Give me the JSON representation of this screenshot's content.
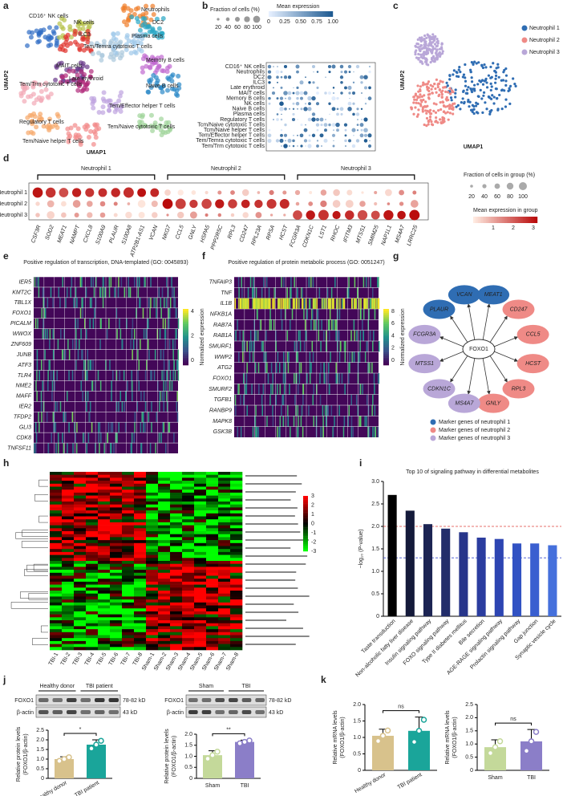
{
  "panel_letters": [
    "a",
    "b",
    "c",
    "d",
    "e",
    "f",
    "g",
    "h",
    "i",
    "j",
    "k"
  ],
  "panels": {
    "a": {
      "x_label": "UMAP1",
      "y_label": "UMAP2",
      "clusters": [
        "CD16⁺ NK cells",
        "NK cells",
        "ILC3",
        "Neutrophils",
        "DC2",
        "Tem/Temra cytotoxic T cells",
        "Plasma cells",
        "MAIT cells",
        "Memory B cells",
        "Late erythroid",
        "Naive B cells",
        "Tem/Trm cytotoxic T cells",
        "Tem/Effector helper T cells",
        "Regulatory T cells",
        "Tem/Naive cytotoxic T cells",
        "Tem/Naive helper T cells"
      ]
    },
    "b": {
      "size_title": "Fraction of cells (%)",
      "size_ticks": [
        20,
        40,
        60,
        80,
        100
      ],
      "color_title": "Mean expression",
      "color_ticks": [
        {
          "value": 0,
          "label": "0"
        },
        {
          "value": 0.25,
          "label": "0.25"
        },
        {
          "value": 0.5,
          "label": "0.50"
        },
        {
          "value": 0.75,
          "label": "0.75"
        },
        {
          "value": 1,
          "label": "1.00"
        }
      ],
      "rows": [
        "CD16⁺ NK cells",
        "Neutrophils",
        "DC2",
        "ILC3",
        "Late erythroid",
        "MAIT cells",
        "Memory B cells",
        "NK cells",
        "Naive B cells",
        "Plasma cells",
        "Regulatory T cells",
        "Tcm/Naive cytotoxic T cells",
        "Tcm/Naive helper T cells",
        "Tem/Effector helper T cells",
        "Tem/Temra cytotoxic T cells",
        "Tem/Trm cytotoxic T cells"
      ]
    },
    "c": {
      "x_label": "UMAP1",
      "y_label": "UMAP2",
      "legend": [
        "Neutrophil 1",
        "Neutrophil 2",
        "Neutrophil 3"
      ],
      "colors": [
        "#2f6db3",
        "#ef8a86",
        "#b9a7d8"
      ]
    },
    "d": {
      "groups": [
        "Neutrophil 1",
        "Neutrophil 2",
        "Neutrophil 3"
      ],
      "group_colors": [
        "#2f6db3",
        "#ef8a86",
        "#b9a7d8"
      ],
      "genes": [
        "CSF3R",
        "SOD2",
        "MEAT1",
        "NAMPT",
        "CXCL8",
        "S100A9",
        "PLAUR",
        "S100A8",
        "ATP2B1-AS1",
        "VCAN",
        "NKG7",
        "CCL5",
        "GNLY",
        "HSPA5",
        "PPP2R5C",
        "RPL3",
        "CD247",
        "RPL23A",
        "RPSA",
        "HCST",
        "FCGR3A",
        "CDKN1C",
        "LST1",
        "RHOC",
        "IFITM3",
        "MTSS1",
        "SMIM25",
        "NAP1L1",
        "MS4A7",
        "LRRC25"
      ],
      "size_title": "Fraction of cells in group (%)",
      "size_ticks": [
        20,
        40,
        60,
        80,
        100
      ],
      "color_title": "Mean expression in group",
      "color_ticks": [
        1,
        2,
        3
      ]
    },
    "e": {
      "title": "Positive regulation of transcription, DNA-templated (GO: 0045893)",
      "genes": [
        "IER5",
        "KMT2C",
        "TBL1X",
        "FOXO1",
        "PICALM",
        "WWOX",
        "ZNF609",
        "JUNB",
        "ATF3",
        "TLR4",
        "NME2",
        "MAFF",
        "IER2",
        "TFDP2",
        "GLI3",
        "CDK8",
        "TNFSF11"
      ],
      "highlight": "FOXO1",
      "colorbar_title": "Normalized expression",
      "colorbar_ticks": [
        0,
        2,
        4
      ]
    },
    "f": {
      "title": "Positive regulation of protein metabolic process (GO: 0051247)",
      "genes": [
        "TNFAIP3",
        "TNF",
        "IL1B",
        "NFKB1A",
        "RAB7A",
        "RAB1A",
        "SMURF1",
        "WWP2",
        "ATG2",
        "FOXO1",
        "SMURF2",
        "TGFB1",
        "RANBP9",
        "MAPK8",
        "GSK3B"
      ],
      "highlight": "FOXO1",
      "colorbar_title": "Normalized expression",
      "colorbar_ticks": [
        0,
        2,
        4,
        6,
        8
      ]
    },
    "g": {
      "center": "FOXO1",
      "nodes": [
        "PLAUR",
        "VCAN",
        "MEAT1",
        "CD247",
        "CCL5",
        "HCST",
        "RPL3",
        "GNLY",
        "MS4A7",
        "CDKN1C",
        "MTSS1",
        "FCGR3A"
      ],
      "node_group": [
        1,
        1,
        1,
        2,
        2,
        2,
        2,
        2,
        3,
        3,
        3,
        3
      ],
      "legend": [
        "Marker genes of neutrophil 1",
        "Marker genes of neutrophil 2",
        "Marker genes of neutrophil 3"
      ],
      "colors": [
        "#2f6db3",
        "#ef8a86",
        "#b9a7d8"
      ]
    },
    "h": {
      "columns": [
        "TBI-1",
        "TBI-2",
        "TBI-3",
        "TBI-4",
        "TBI-5",
        "TBI-6",
        "TBI-7",
        "TBI-8",
        "Sham-1",
        "Sham-2",
        "Sham-3",
        "Sham-4",
        "Sham-5",
        "Sham-6",
        "Sham-7",
        "Sham-8"
      ],
      "colorbar_ticks": [
        3,
        2,
        1,
        0,
        -1,
        -2,
        -3
      ]
    },
    "j": {
      "blot_left": {
        "groups": [
          "Healthy donor",
          "TBI patient"
        ],
        "proteins": [
          "FOXO1",
          "β-actin"
        ],
        "sizes": [
          "78-82 kD",
          "43 kD"
        ]
      },
      "blot_right": {
        "groups": [
          "Sham",
          "TBI"
        ],
        "proteins": [
          "FOXO1",
          "β-actin"
        ],
        "sizes": [
          "78-82 kD",
          "43 kD"
        ]
      }
    }
  },
  "chart_data": [
    {
      "type": "bar",
      "title": "Top 10 of signaling pathway in differential metabolites",
      "y_label": [
        "−log₁₀ (P-value)"
      ],
      "categories": [
        "Taste transduction",
        "Non-alcoholic fatty liver disease",
        "Insulin signaling pathway",
        "FOXO signaling pathway",
        "Type II diabetes mellitus",
        "Bile secretion",
        "AGE-RAGE signaling pathway",
        "Prolactin signaling pathway",
        "Gap junction",
        "Synaptic vesicle cycle"
      ],
      "values": [
        2.7,
        2.35,
        2.05,
        1.95,
        1.87,
        1.75,
        1.72,
        1.62,
        1.62,
        1.58
      ],
      "colors": [
        "#000000",
        "#141a3a",
        "#1c2453",
        "#222d6a",
        "#27358a",
        "#2b3d9f",
        "#2d45b2",
        "#3152c3",
        "#3a5fd0",
        "#4570dc"
      ],
      "highlight": "FOXO signaling pathway",
      "ref_lines": [
        {
          "value": 2,
          "color": "#e0443c"
        },
        {
          "value": 1.3,
          "color": "#3c4fd0"
        }
      ],
      "ylim": [
        0,
        3
      ],
      "yticks": [
        0,
        0.5,
        {
          "value": 1,
          "label": "1.0"
        },
        1.5,
        {
          "value": 2,
          "label": "2.0"
        },
        2.5,
        {
          "value": 3,
          "label": "3.0"
        }
      ]
    },
    {
      "type": "bar",
      "y_label": [
        "Relative protein levels",
        "(FOXO1/β-actin)"
      ],
      "categories": [
        "Healthy donor",
        "TBI patient"
      ],
      "values": [
        1.0,
        1.75
      ],
      "errors": [
        0.12,
        0.25
      ],
      "colors": [
        "#d8c28c",
        "#1aa59a"
      ],
      "annotation": "*",
      "ylim": [
        0,
        2.5
      ],
      "yticks": [
        0,
        0.5,
        {
          "value": 1,
          "label": "1.0"
        },
        1.5,
        {
          "value": 2,
          "label": "2.0"
        },
        2.5
      ]
    },
    {
      "type": "bar",
      "y_label": [
        "Relative protein levels",
        "(FOXO1/β-actin)"
      ],
      "categories": [
        "Sham",
        "TBI"
      ],
      "values": [
        1.05,
        1.65
      ],
      "errors": [
        0.2,
        0.08
      ],
      "colors": [
        "#c4d99a",
        "#8b7ec8"
      ],
      "annotation": "**",
      "ylim": [
        0,
        2
      ],
      "yticks": [
        0,
        0.5,
        {
          "value": 1,
          "label": "1.0"
        },
        1.5,
        {
          "value": 2,
          "label": "2.0"
        }
      ]
    },
    {
      "type": "bar",
      "y_label": [
        "Relative mRNA levels",
        "(FOXO1/β-actin)"
      ],
      "categories": [
        "Healthy donor",
        "TBI patient"
      ],
      "values": [
        1.05,
        1.2
      ],
      "errors": [
        0.2,
        0.42
      ],
      "colors": [
        "#d8c28c",
        "#1aa59a"
      ],
      "annotation": "ns",
      "ylim": [
        0,
        2
      ],
      "yticks": [
        0,
        0.5,
        {
          "value": 1,
          "label": "1.0"
        },
        1.5,
        {
          "value": 2,
          "label": "2.0"
        }
      ]
    },
    {
      "type": "bar",
      "y_label": [
        "Relative mRNA levels",
        "(FOXO1/β-actin)"
      ],
      "categories": [
        "Sham",
        "TBI"
      ],
      "values": [
        0.88,
        1.1
      ],
      "errors": [
        0.28,
        0.45
      ],
      "colors": [
        "#c4d99a",
        "#8b7ec8"
      ],
      "annotation": "ns",
      "ylim": [
        0,
        2.5
      ],
      "yticks": [
        0,
        0.5,
        {
          "value": 1,
          "label": "1.0"
        },
        1.5,
        {
          "value": 2,
          "label": "2.0"
        },
        2.5
      ]
    }
  ]
}
